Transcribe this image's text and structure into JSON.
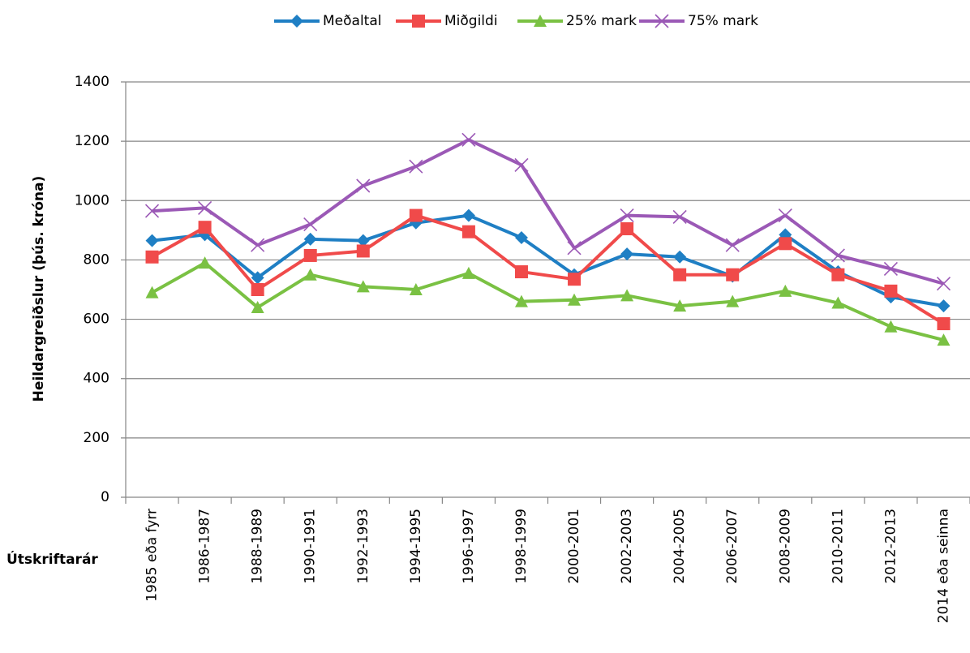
{
  "chart_data": {
    "type": "line",
    "y_label": "Heildargreiðslur (þús. króna)",
    "x_label": "Útskriftarár",
    "categories": [
      "1985 eða fyrr",
      "1986-1987",
      "1988-1989",
      "1990-1991",
      "1992-1993",
      "1994-1995",
      "1996-1997",
      "1998-1999",
      "2000-2001",
      "2002-2003",
      "2004-2005",
      "2006-2007",
      "2008-2009",
      "2010-2011",
      "2012-2013",
      "2014 eða seinna"
    ],
    "series": [
      {
        "name": "Meðaltal",
        "color": "#1f7fc4",
        "values": [
          865,
          885,
          740,
          870,
          865,
          925,
          950,
          875,
          750,
          820,
          810,
          745,
          885,
          760,
          675,
          645
        ]
      },
      {
        "name": "Miðgildi",
        "color": "#f04a4a",
        "values": [
          810,
          910,
          700,
          815,
          830,
          950,
          895,
          760,
          735,
          905,
          750,
          750,
          855,
          750,
          695,
          585
        ]
      },
      {
        "name": "25% mark",
        "color": "#7ac143",
        "values": [
          690,
          790,
          640,
          750,
          710,
          700,
          755,
          660,
          665,
          680,
          645,
          660,
          695,
          655,
          575,
          530
        ]
      },
      {
        "name": "75% mark",
        "color": "#9b59b6",
        "values": [
          965,
          975,
          850,
          920,
          1050,
          1115,
          1205,
          1120,
          840,
          950,
          945,
          850,
          950,
          815,
          770,
          720
        ]
      }
    ],
    "ylim": [
      0,
      1400
    ],
    "yticks": [
      0,
      200,
      400,
      600,
      800,
      1000,
      1200,
      1400
    ],
    "grid": true
  }
}
